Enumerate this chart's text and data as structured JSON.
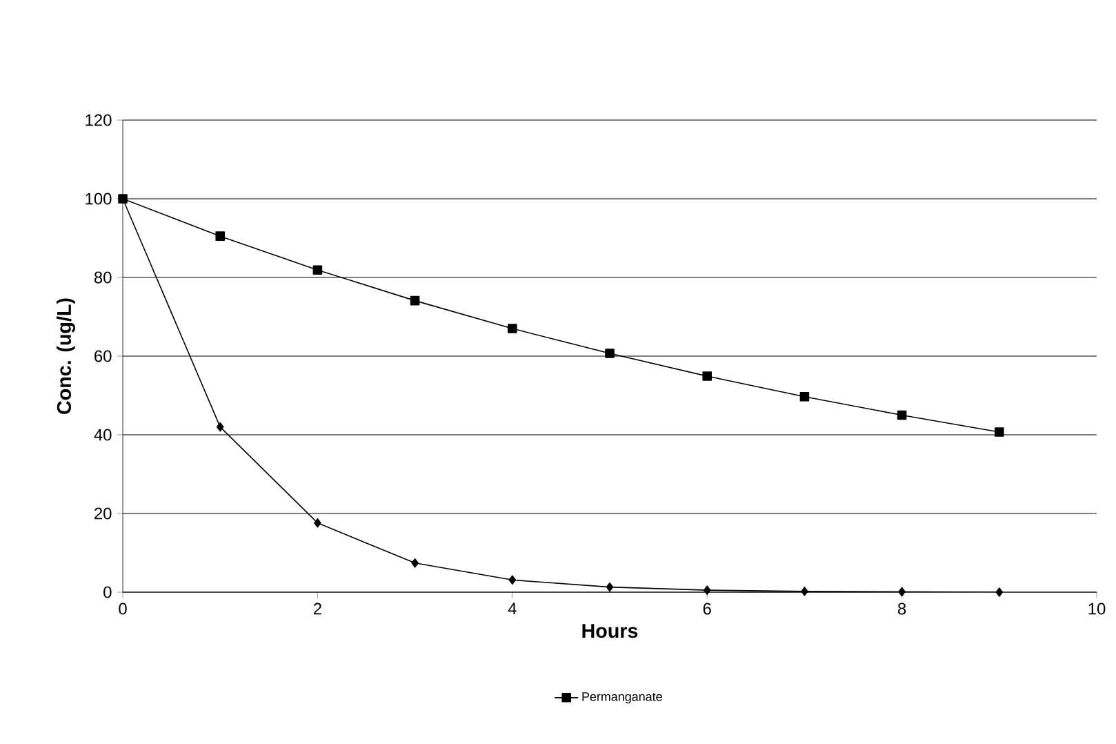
{
  "chart_data": {
    "type": "line",
    "xlabel": "Hours",
    "ylabel": "Conc. (ug/L)",
    "x": [
      0,
      1,
      2,
      3,
      4,
      5,
      6,
      7,
      8,
      9
    ],
    "series": [
      {
        "color": "#000000",
        "marker": "diamond",
        "values": [
          100,
          42,
          17.6,
          7.4,
          3.1,
          1.3,
          0.5,
          0.2,
          0.1,
          0
        ]
      },
      {
        "name": "Permanganate",
        "color": "#000000",
        "marker": "square",
        "values": [
          100,
          90.5,
          81.9,
          74.1,
          67.0,
          60.7,
          54.9,
          49.7,
          45.0,
          40.7
        ]
      }
    ],
    "xlim": [
      0,
      10
    ],
    "ylim": [
      0,
      120
    ],
    "xticks": [
      0,
      2,
      4,
      6,
      8,
      10
    ],
    "yticks": [
      0,
      20,
      40,
      60,
      80,
      100,
      120
    ],
    "grid": "y",
    "legend": "bottom",
    "line_style": "solid"
  }
}
